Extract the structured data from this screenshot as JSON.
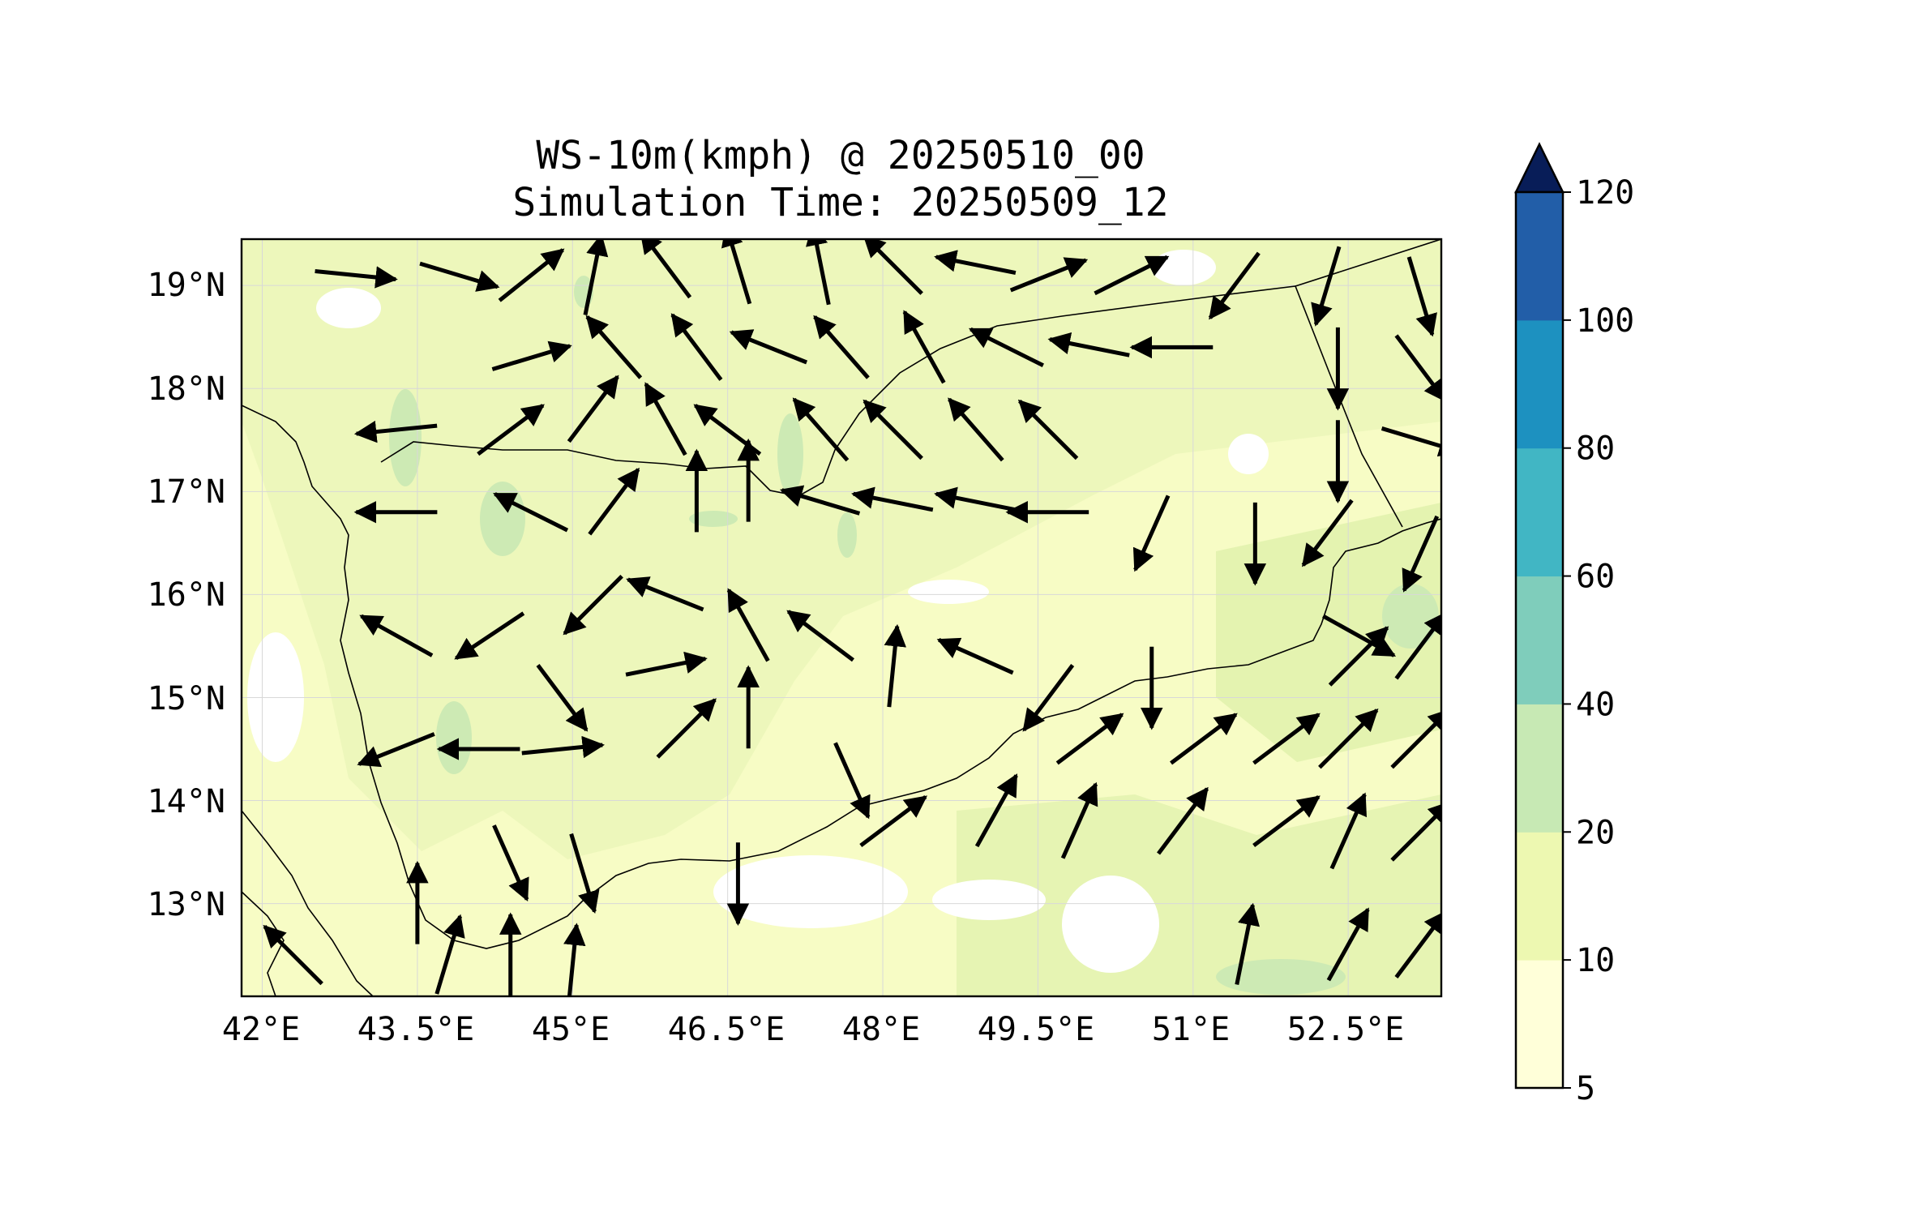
{
  "title": {
    "line1": "WS-10m(kmph) @ 20250510_00",
    "line2": "Simulation Time: 20250509_12"
  },
  "map": {
    "lon_ticks": [
      "42°E",
      "43.5°E",
      "45°E",
      "46.5°E",
      "48°E",
      "49.5°E",
      "51°E",
      "52.5°E"
    ],
    "lat_ticks": [
      "19°N",
      "18°N",
      "17°N",
      "16°N",
      "15°N",
      "14°N",
      "13°N"
    ],
    "land_color": "#f7fcc5",
    "low_shade_color": "#eaf6b8",
    "mid_shade_color": "#cdeab4",
    "arrow_color": "#000000"
  },
  "colorbar": {
    "levels": [
      "5",
      "10",
      "20",
      "40",
      "60",
      "80",
      "100",
      "120"
    ],
    "colors": [
      "#ffffd9",
      "#edf8b1",
      "#c7e9b4",
      "#7fcdbb",
      "#41b6c4",
      "#1d91c0",
      "#225ea8",
      "#0c2c84"
    ],
    "extend_color": "#081d58"
  },
  "chart_data": {
    "type": "vector-field",
    "title": "WS-10m(kmph) @ 20250510_00",
    "subtitle": "Simulation Time: 20250509_12",
    "xlim": [
      41.8,
      53.4
    ],
    "ylim": [
      12.1,
      19.45
    ],
    "field": "10 m wind speed (kmph), filled contours with wind-direction arrows",
    "colorbar_levels": [
      5,
      10,
      20,
      40,
      60,
      80,
      100,
      120
    ],
    "colorbar_extend": "max",
    "dominant_range": "5-20",
    "wind_vectors": [
      {
        "lon": 42.9,
        "lat": 19.1,
        "u": 1.0,
        "v": -0.1
      },
      {
        "lon": 43.9,
        "lat": 19.1,
        "u": 1.0,
        "v": -0.3
      },
      {
        "lon": 44.6,
        "lat": 19.1,
        "u": 1.0,
        "v": 0.8
      },
      {
        "lon": 45.2,
        "lat": 19.1,
        "u": 0.2,
        "v": 1.0
      },
      {
        "lon": 45.9,
        "lat": 19.2,
        "u": -0.6,
        "v": 0.8
      },
      {
        "lon": 46.6,
        "lat": 19.2,
        "u": -0.3,
        "v": 1.0
      },
      {
        "lon": 47.4,
        "lat": 19.2,
        "u": -0.2,
        "v": 1.0
      },
      {
        "lon": 48.1,
        "lat": 19.2,
        "u": -0.7,
        "v": 0.7
      },
      {
        "lon": 48.9,
        "lat": 19.2,
        "u": -1.0,
        "v": 0.2
      },
      {
        "lon": 49.6,
        "lat": 19.1,
        "u": 1.0,
        "v": 0.4
      },
      {
        "lon": 50.4,
        "lat": 19.1,
        "u": 1.0,
        "v": 0.5
      },
      {
        "lon": 51.4,
        "lat": 19.0,
        "u": -0.6,
        "v": -0.8
      },
      {
        "lon": 52.3,
        "lat": 19.0,
        "u": -0.3,
        "v": -1.0
      },
      {
        "lon": 53.2,
        "lat": 18.9,
        "u": 0.3,
        "v": -1.0
      },
      {
        "lon": 44.6,
        "lat": 18.3,
        "u": 1.0,
        "v": 0.3
      },
      {
        "lon": 45.4,
        "lat": 18.4,
        "u": -0.7,
        "v": 0.8
      },
      {
        "lon": 46.2,
        "lat": 18.4,
        "u": -0.6,
        "v": 0.8
      },
      {
        "lon": 46.9,
        "lat": 18.4,
        "u": -1.0,
        "v": 0.4
      },
      {
        "lon": 47.6,
        "lat": 18.4,
        "u": -0.7,
        "v": 0.8
      },
      {
        "lon": 48.4,
        "lat": 18.4,
        "u": -0.5,
        "v": 0.9
      },
      {
        "lon": 49.2,
        "lat": 18.4,
        "u": -1.0,
        "v": 0.5
      },
      {
        "lon": 50.0,
        "lat": 18.4,
        "u": -1.0,
        "v": 0.2
      },
      {
        "lon": 50.8,
        "lat": 18.4,
        "u": -1.0,
        "v": 0.0
      },
      {
        "lon": 52.4,
        "lat": 18.2,
        "u": 0.0,
        "v": -1.0
      },
      {
        "lon": 53.2,
        "lat": 18.2,
        "u": 0.6,
        "v": -0.8
      },
      {
        "lon": 43.3,
        "lat": 17.6,
        "u": -1.0,
        "v": -0.1
      },
      {
        "lon": 44.4,
        "lat": 17.6,
        "u": 0.8,
        "v": 0.6
      },
      {
        "lon": 45.2,
        "lat": 17.8,
        "u": 0.6,
        "v": 0.8
      },
      {
        "lon": 45.9,
        "lat": 17.7,
        "u": -0.5,
        "v": 0.9
      },
      {
        "lon": 46.5,
        "lat": 17.6,
        "u": -0.8,
        "v": 0.6
      },
      {
        "lon": 47.4,
        "lat": 17.6,
        "u": -0.7,
        "v": 0.8
      },
      {
        "lon": 48.1,
        "lat": 17.6,
        "u": -0.7,
        "v": 0.7
      },
      {
        "lon": 48.9,
        "lat": 17.6,
        "u": -0.7,
        "v": 0.8
      },
      {
        "lon": 49.6,
        "lat": 17.6,
        "u": -0.7,
        "v": 0.7
      },
      {
        "lon": 52.4,
        "lat": 17.3,
        "u": 0.0,
        "v": -1.0
      },
      {
        "lon": 53.2,
        "lat": 17.5,
        "u": 1.0,
        "v": -0.3
      },
      {
        "lon": 44.6,
        "lat": 16.8,
        "u": -1.0,
        "v": 0.5
      },
      {
        "lon": 43.3,
        "lat": 16.8,
        "u": -1.0,
        "v": 0.0
      },
      {
        "lon": 45.4,
        "lat": 16.9,
        "u": 0.6,
        "v": 0.8
      },
      {
        "lon": 46.2,
        "lat": 17.0,
        "u": 0.0,
        "v": 1.0
      },
      {
        "lon": 46.7,
        "lat": 17.1,
        "u": 0.0,
        "v": 1.0
      },
      {
        "lon": 47.4,
        "lat": 16.9,
        "u": -1.0,
        "v": 0.3
      },
      {
        "lon": 48.1,
        "lat": 16.9,
        "u": -1.0,
        "v": 0.2
      },
      {
        "lon": 48.9,
        "lat": 16.9,
        "u": -1.0,
        "v": 0.2
      },
      {
        "lon": 49.6,
        "lat": 16.8,
        "u": -1.0,
        "v": 0.0
      },
      {
        "lon": 50.6,
        "lat": 16.6,
        "u": -0.4,
        "v": -0.9
      },
      {
        "lon": 51.6,
        "lat": 16.5,
        "u": 0.0,
        "v": -1.0
      },
      {
        "lon": 52.3,
        "lat": 16.6,
        "u": -0.6,
        "v": -0.8
      },
      {
        "lon": 53.2,
        "lat": 16.4,
        "u": -0.4,
        "v": -0.9
      },
      {
        "lon": 43.3,
        "lat": 15.6,
        "u": -0.9,
        "v": 0.5
      },
      {
        "lon": 44.2,
        "lat": 15.6,
        "u": -0.6,
        "v": -0.4
      },
      {
        "lon": 45.2,
        "lat": 15.9,
        "u": -0.7,
        "v": -0.7
      },
      {
        "lon": 45.9,
        "lat": 16.0,
        "u": -1.0,
        "v": 0.4
      },
      {
        "lon": 46.7,
        "lat": 15.7,
        "u": -0.5,
        "v": 0.9
      },
      {
        "lon": 47.4,
        "lat": 15.6,
        "u": -0.8,
        "v": 0.6
      },
      {
        "lon": 48.1,
        "lat": 15.3,
        "u": 0.1,
        "v": 1.0
      },
      {
        "lon": 48.9,
        "lat": 15.4,
        "u": -0.9,
        "v": 0.4
      },
      {
        "lon": 49.6,
        "lat": 15.0,
        "u": -0.6,
        "v": -0.8
      },
      {
        "lon": 50.6,
        "lat": 15.1,
        "u": 0.0,
        "v": -1.0
      },
      {
        "lon": 52.6,
        "lat": 15.6,
        "u": 0.9,
        "v": -0.5
      },
      {
        "lon": 52.6,
        "lat": 15.4,
        "u": 0.7,
        "v": 0.7
      },
      {
        "lon": 53.2,
        "lat": 15.5,
        "u": 0.6,
        "v": 0.8
      },
      {
        "lon": 43.3,
        "lat": 14.5,
        "u": -1.0,
        "v": -0.4
      },
      {
        "lon": 44.1,
        "lat": 14.5,
        "u": -1.0,
        "v": 0.0
      },
      {
        "lon": 44.9,
        "lat": 15.0,
        "u": 0.6,
        "v": -0.8
      },
      {
        "lon": 44.9,
        "lat": 14.5,
        "u": 1.0,
        "v": 0.1
      },
      {
        "lon": 45.9,
        "lat": 15.3,
        "u": 1.0,
        "v": 0.2
      },
      {
        "lon": 46.1,
        "lat": 14.7,
        "u": 0.7,
        "v": 0.7
      },
      {
        "lon": 46.7,
        "lat": 14.9,
        "u": 0.0,
        "v": 1.0
      },
      {
        "lon": 47.7,
        "lat": 14.2,
        "u": 0.4,
        "v": -0.9
      },
      {
        "lon": 49.1,
        "lat": 13.9,
        "u": 0.5,
        "v": 0.9
      },
      {
        "lon": 50.0,
        "lat": 14.6,
        "u": 0.8,
        "v": 0.6
      },
      {
        "lon": 51.1,
        "lat": 14.6,
        "u": 0.8,
        "v": 0.6
      },
      {
        "lon": 51.9,
        "lat": 14.6,
        "u": 0.8,
        "v": 0.6
      },
      {
        "lon": 52.5,
        "lat": 14.6,
        "u": 0.7,
        "v": 0.7
      },
      {
        "lon": 53.2,
        "lat": 14.6,
        "u": 0.7,
        "v": 0.7
      },
      {
        "lon": 43.5,
        "lat": 13.0,
        "u": 0.0,
        "v": 1.0
      },
      {
        "lon": 44.4,
        "lat": 13.4,
        "u": 0.4,
        "v": -0.9
      },
      {
        "lon": 45.1,
        "lat": 13.3,
        "u": 0.3,
        "v": -1.0
      },
      {
        "lon": 46.6,
        "lat": 13.2,
        "u": 0.0,
        "v": -1.0
      },
      {
        "lon": 48.1,
        "lat": 13.8,
        "u": 0.8,
        "v": 0.6
      },
      {
        "lon": 49.9,
        "lat": 13.8,
        "u": 0.4,
        "v": 0.9
      },
      {
        "lon": 50.9,
        "lat": 13.8,
        "u": 0.6,
        "v": 0.8
      },
      {
        "lon": 51.9,
        "lat": 13.8,
        "u": 0.8,
        "v": 0.6
      },
      {
        "lon": 52.5,
        "lat": 13.7,
        "u": 0.4,
        "v": 0.9
      },
      {
        "lon": 53.2,
        "lat": 13.7,
        "u": 0.7,
        "v": 0.7
      },
      {
        "lon": 43.8,
        "lat": 12.5,
        "u": 0.3,
        "v": 1.0
      },
      {
        "lon": 44.4,
        "lat": 12.5,
        "u": 0.0,
        "v": 1.0
      },
      {
        "lon": 45.0,
        "lat": 12.4,
        "u": 0.1,
        "v": 1.0
      },
      {
        "lon": 51.5,
        "lat": 12.6,
        "u": 0.2,
        "v": 1.0
      },
      {
        "lon": 52.5,
        "lat": 12.6,
        "u": 0.5,
        "v": 0.9
      },
      {
        "lon": 53.2,
        "lat": 12.6,
        "u": 0.6,
        "v": 0.8
      },
      {
        "lon": 42.3,
        "lat": 12.5,
        "u": -0.7,
        "v": 0.7
      }
    ]
  }
}
